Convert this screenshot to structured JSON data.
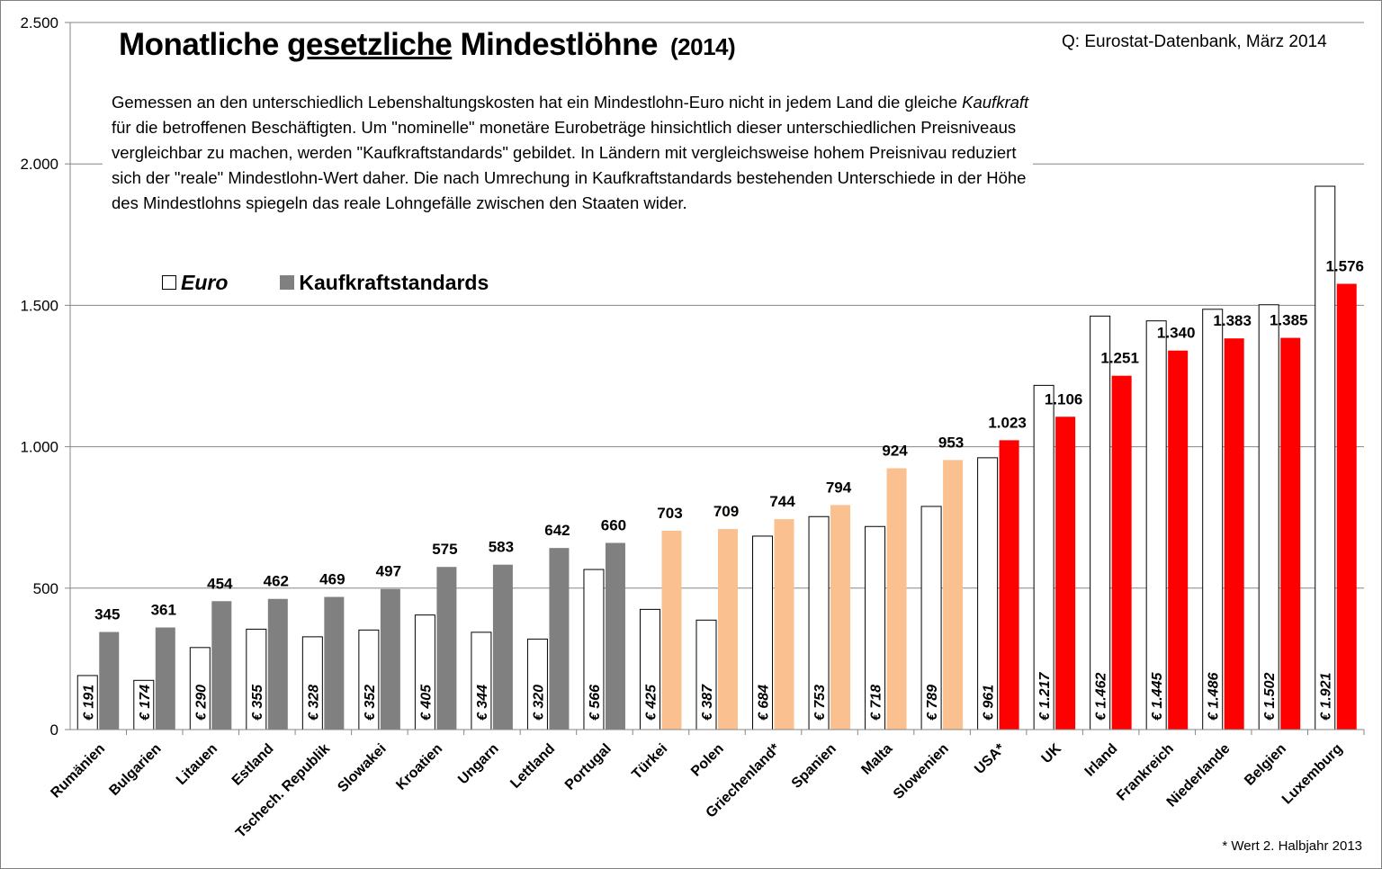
{
  "chart_data": {
    "type": "bar",
    "title": "Monatliche gesetzliche Mindestlöhne",
    "title_year": "(2014)",
    "source": "Q: Eurostat-Datenbank, März 2014",
    "footnote": "* Wert 2. Halbjahr 2013",
    "ylim": [
      0,
      2500
    ],
    "yticks": [
      0,
      500,
      1000,
      1500,
      2000,
      2500
    ],
    "ytick_labels": [
      "0",
      "500",
      "1.000",
      "1.500",
      "2.000",
      "2.500"
    ],
    "grid": true,
    "legend": {
      "placement": "top-left",
      "entries": [
        "Euro",
        "Kaufkraftstandards"
      ]
    },
    "categories": [
      "Rumänien",
      "Bulgarien",
      "Litauen",
      "Estland",
      "Tschech. Republik",
      "Slowakei",
      "Kroatien",
      "Ungarn",
      "Lettland",
      "Portugal",
      "Türkei",
      "Polen",
      "Griechenland*",
      "Spanien",
      "Malta",
      "Slowenien",
      "USA*",
      "UK",
      "Irland",
      "Frankreich",
      "Niederlande",
      "Belgien",
      "Luxemburg"
    ],
    "series": [
      {
        "name": "Euro",
        "values": [
          191,
          174,
          290,
          355,
          328,
          352,
          405,
          344,
          320,
          566,
          425,
          387,
          684,
          753,
          718,
          789,
          961,
          1217,
          1462,
          1445,
          1486,
          1502,
          1921
        ],
        "labels": [
          "€ 191",
          "€ 174",
          "€ 290",
          "€ 355",
          "€ 328",
          "€ 352",
          "€ 405",
          "€ 344",
          "€ 320",
          "€ 566",
          "€ 425",
          "€ 387",
          "€ 684",
          "€ 753",
          "€ 718",
          "€ 789",
          "€ 961",
          "€ 1.217",
          "€ 1.462",
          "€ 1.445",
          "€ 1.486",
          "€ 1.502",
          "€ 1.921"
        ]
      },
      {
        "name": "Kaufkraftstandards",
        "values": [
          345,
          361,
          454,
          462,
          469,
          497,
          575,
          583,
          642,
          660,
          703,
          709,
          744,
          794,
          924,
          953,
          1023,
          1106,
          1251,
          1340,
          1383,
          1385,
          1576
        ],
        "labels": [
          "345",
          "361",
          "454",
          "462",
          "469",
          "497",
          "575",
          "583",
          "642",
          "660",
          "703",
          "709",
          "744",
          "794",
          "924",
          "953",
          "1.023",
          "1.106",
          "1.251",
          "1.340",
          "1.383",
          "1.385",
          "1.576"
        ]
      }
    ],
    "group_colors": [
      "#808080",
      "#808080",
      "#808080",
      "#808080",
      "#808080",
      "#808080",
      "#808080",
      "#808080",
      "#808080",
      "#808080",
      "#FAC090",
      "#FAC090",
      "#FAC090",
      "#FAC090",
      "#FAC090",
      "#FAC090",
      "#FF0000",
      "#FF0000",
      "#FF0000",
      "#FF0000",
      "#FF0000",
      "#FF0000",
      "#FF0000"
    ],
    "euro_bar_color": "#FFFFFF",
    "grid_color": "#868686"
  },
  "description": {
    "part1": "Gemessen an den unterschiedlich Lebenshaltungskosten hat ein Mindestlohn-Euro nicht in jedem Land die gleiche ",
    "emph": "Kaufkraft",
    "part2": " für die betroffenen Beschäftigten. Um \"nominelle\" monetäre Eurobeträge hinsichtlich dieser unterschiedlichen Preisniveaus vergleichbar zu machen, werden \"Kaufkraftstandards\" gebildet. In Ländern mit vergleichsweise hohem Preisnivau reduziert sich der \"reale\" Mindestlohn-Wert daher. Die nach Umrechung in Kaufkraftstandards bestehenden Unterschiede in der Höhe des Mindestlohns spiegeln das reale Lohngefälle zwischen den Staaten wider."
  },
  "title_parts": {
    "pre": "Monatliche ",
    "underlined": "gesetzliche",
    "post": " Mindestlöhne"
  }
}
